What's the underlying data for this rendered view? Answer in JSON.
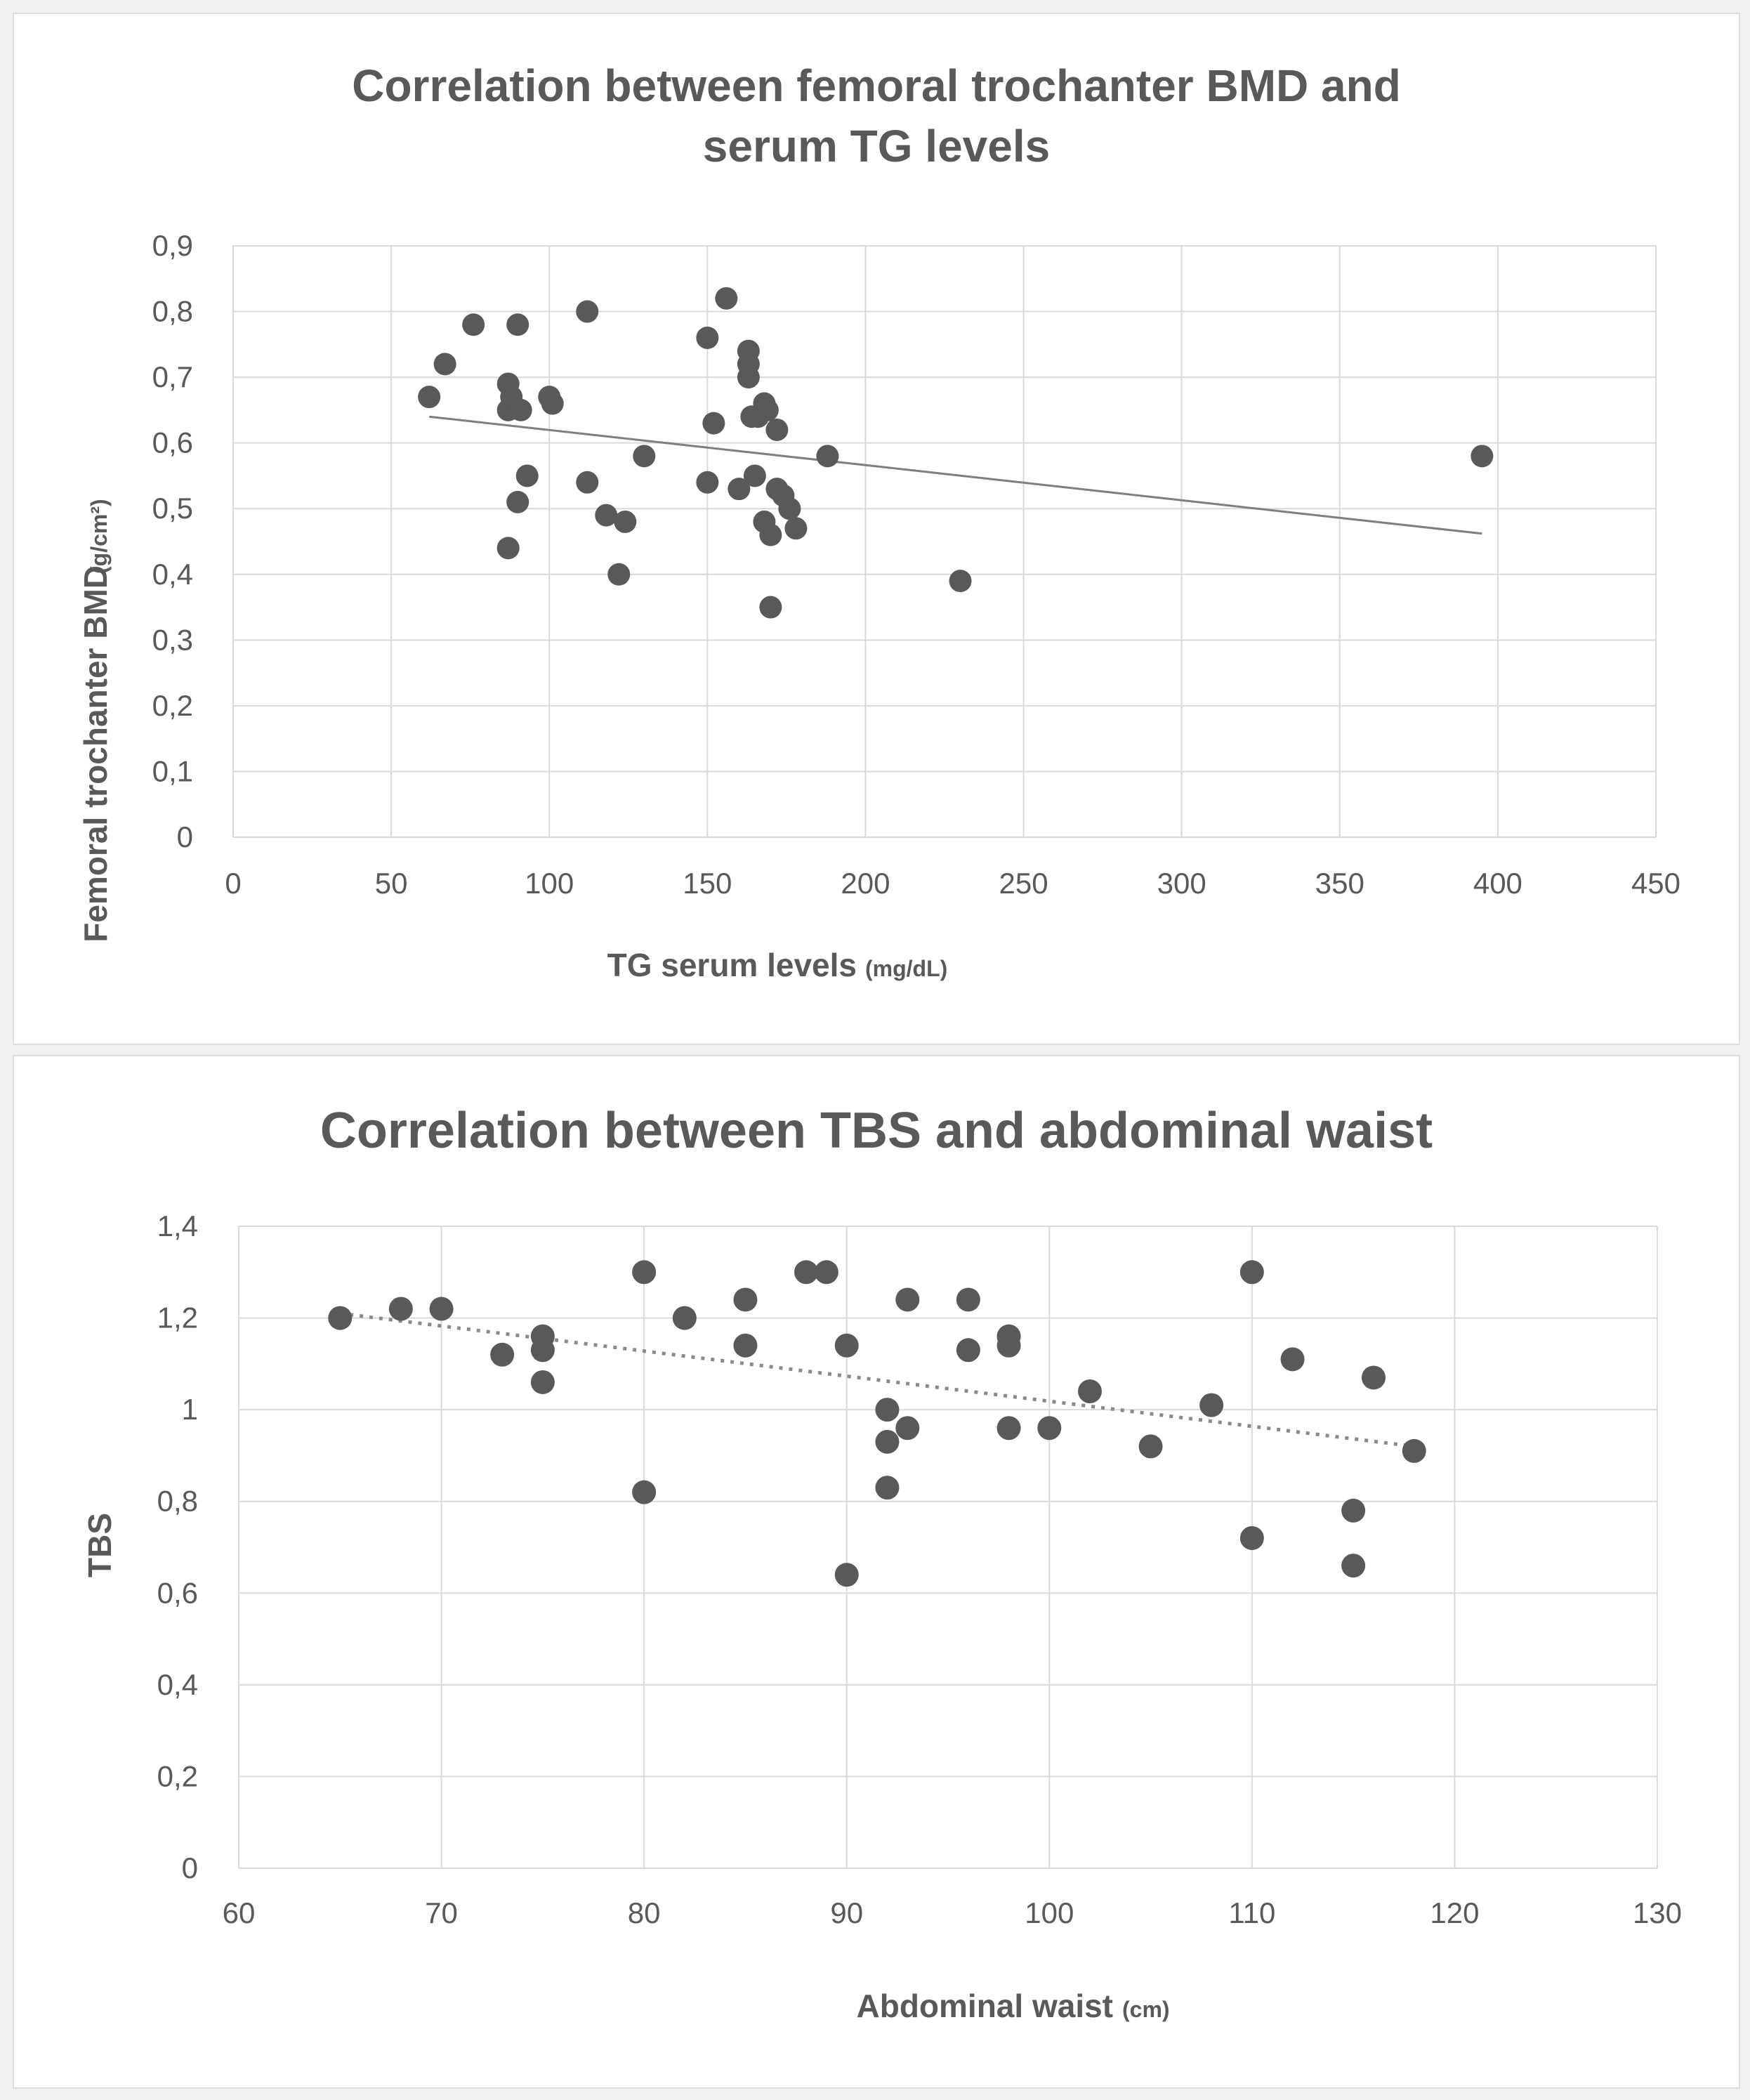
{
  "chart_data": [
    {
      "type": "scatter",
      "title_lines": [
        "Correlation between femoral trochanter BMD and",
        "serum TG levels"
      ],
      "xlabel": "TG serum levels",
      "xlabel_unit": "(mg/dL)",
      "ylabel": "Femoral trochanter BMD",
      "ylabel_unit": "(g/cm²)",
      "xlim": [
        0,
        450
      ],
      "ylim": [
        0,
        0.9
      ],
      "x_ticks": [
        "0",
        "50",
        "100",
        "150",
        "200",
        "250",
        "300",
        "350",
        "400",
        "450"
      ],
      "y_ticks": [
        "0",
        "0,1",
        "0,2",
        "0,3",
        "0,4",
        "0,5",
        "0,6",
        "0,7",
        "0,8",
        "0,9"
      ],
      "x_tick_values": [
        0,
        50,
        100,
        150,
        200,
        250,
        300,
        350,
        400,
        450
      ],
      "y_tick_values": [
        0,
        0.1,
        0.2,
        0.3,
        0.4,
        0.5,
        0.6,
        0.7,
        0.8,
        0.9
      ],
      "grid": true,
      "series": [
        {
          "name": "BMD",
          "x": [
            62,
            67,
            76,
            87,
            87,
            88,
            90,
            90,
            91,
            93,
            100,
            101,
            87,
            112,
            112,
            118,
            124,
            122,
            130,
            150,
            150,
            152,
            156,
            160,
            163,
            163,
            163,
            164,
            165,
            166,
            168,
            168,
            169,
            170,
            170,
            172,
            172,
            174,
            176,
            178,
            188,
            230,
            395
          ],
          "y": [
            0.67,
            0.72,
            0.78,
            0.69,
            0.65,
            0.67,
            0.78,
            0.51,
            0.65,
            0.55,
            0.67,
            0.66,
            0.44,
            0.8,
            0.54,
            0.49,
            0.48,
            0.4,
            0.58,
            0.76,
            0.54,
            0.63,
            0.82,
            0.53,
            0.7,
            0.72,
            0.74,
            0.64,
            0.55,
            0.64,
            0.48,
            0.66,
            0.65,
            0.46,
            0.35,
            0.53,
            0.62,
            0.52,
            0.5,
            0.47,
            0.58,
            0.39,
            0.58
          ]
        }
      ],
      "trendline": {
        "style": "solid",
        "x": [
          62,
          395
        ],
        "y": [
          0.64,
          0.462
        ]
      }
    },
    {
      "type": "scatter",
      "title_lines": [
        "Correlation between TBS and abdominal waist"
      ],
      "xlabel": "Abdominal waist",
      "xlabel_unit": "(cm)",
      "ylabel": "TBS",
      "ylabel_unit": "",
      "xlim": [
        60,
        130
      ],
      "ylim": [
        0,
        1.4
      ],
      "x_ticks": [
        "60",
        "70",
        "80",
        "90",
        "100",
        "110",
        "120",
        "130"
      ],
      "y_ticks": [
        "0",
        "0,2",
        "0,4",
        "0,6",
        "0,8",
        "1",
        "1,2",
        "1,4"
      ],
      "x_tick_values": [
        60,
        70,
        80,
        90,
        100,
        110,
        120,
        130
      ],
      "y_tick_values": [
        0,
        0.2,
        0.4,
        0.6,
        0.8,
        1.0,
        1.2,
        1.4
      ],
      "grid": true,
      "series": [
        {
          "name": "TBS",
          "x": [
            65,
            68,
            70,
            73,
            75,
            75,
            75,
            80,
            80,
            82,
            85,
            85,
            88,
            89,
            90,
            90,
            92,
            92,
            92,
            93,
            93,
            96,
            96,
            98,
            98,
            98,
            100,
            102,
            105,
            108,
            110,
            110,
            112,
            115,
            115,
            116,
            118
          ],
          "y": [
            1.2,
            1.22,
            1.22,
            1.12,
            1.16,
            1.13,
            1.06,
            1.3,
            0.82,
            1.2,
            1.24,
            1.14,
            1.3,
            1.3,
            1.14,
            0.64,
            1.0,
            0.93,
            0.83,
            0.96,
            1.24,
            1.24,
            1.13,
            1.16,
            1.14,
            0.96,
            0.96,
            1.04,
            0.92,
            1.01,
            1.3,
            0.72,
            1.11,
            0.78,
            0.66,
            1.07,
            0.91
          ]
        }
      ],
      "trendline": {
        "style": "dotted",
        "x": [
          65,
          118
        ],
        "y": [
          1.21,
          0.92
        ]
      }
    }
  ]
}
